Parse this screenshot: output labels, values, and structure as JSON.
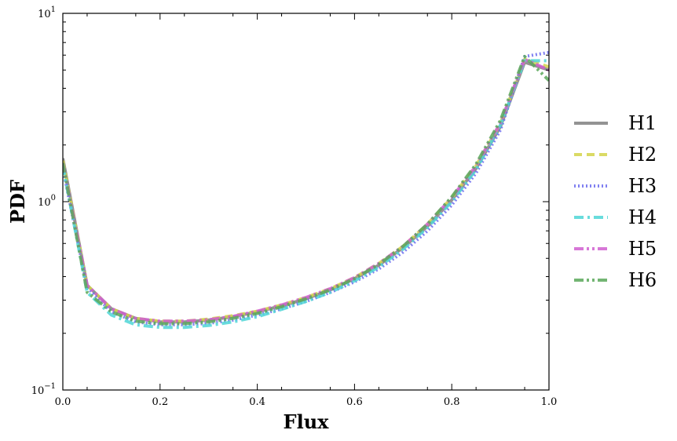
{
  "chart_data": {
    "type": "line",
    "xlabel": "Flux",
    "ylabel": "PDF",
    "xlim": [
      0.0,
      1.0
    ],
    "ylim": [
      0.1,
      10
    ],
    "yscale": "log",
    "grid": false,
    "legend_position": "right outside",
    "x_ticks": [
      "0.0",
      "0.2",
      "0.4",
      "0.6",
      "0.8",
      "1.0"
    ],
    "y_ticks": [
      {
        "base": "10",
        "exp": "−1",
        "value": 0.1
      },
      {
        "base": "10",
        "exp": "0",
        "value": 1
      },
      {
        "base": "10",
        "exp": "1",
        "value": 10
      }
    ],
    "x": [
      0.0,
      0.05,
      0.1,
      0.15,
      0.2,
      0.25,
      0.3,
      0.35,
      0.4,
      0.45,
      0.5,
      0.55,
      0.6,
      0.65,
      0.7,
      0.75,
      0.8,
      0.85,
      0.9,
      0.95,
      1.0
    ],
    "series": [
      {
        "name": "H1",
        "color": "#808080",
        "dash": "solid",
        "values": [
          1.7,
          0.36,
          0.27,
          0.24,
          0.23,
          0.23,
          0.235,
          0.245,
          0.26,
          0.28,
          0.305,
          0.34,
          0.39,
          0.46,
          0.57,
          0.74,
          1.02,
          1.5,
          2.5,
          5.5,
          5.0
        ]
      },
      {
        "name": "H2",
        "color": "#d4d44a",
        "dash": "dashed",
        "values": [
          1.65,
          0.36,
          0.27,
          0.24,
          0.232,
          0.232,
          0.238,
          0.248,
          0.262,
          0.283,
          0.31,
          0.345,
          0.395,
          0.47,
          0.58,
          0.76,
          1.05,
          1.55,
          2.6,
          5.7,
          5.2
        ]
      },
      {
        "name": "H3",
        "color": "#6b6bef",
        "dash": "dotted",
        "values": [
          1.5,
          0.35,
          0.26,
          0.23,
          0.222,
          0.222,
          0.226,
          0.235,
          0.25,
          0.27,
          0.295,
          0.33,
          0.375,
          0.44,
          0.54,
          0.7,
          0.96,
          1.42,
          2.4,
          5.9,
          6.2
        ]
      },
      {
        "name": "H4",
        "color": "#4fd6d6",
        "dash": "dashdot",
        "values": [
          1.55,
          0.33,
          0.25,
          0.222,
          0.215,
          0.215,
          0.22,
          0.23,
          0.245,
          0.268,
          0.295,
          0.33,
          0.38,
          0.45,
          0.56,
          0.73,
          1.0,
          1.48,
          2.55,
          5.6,
          5.6
        ]
      },
      {
        "name": "H5",
        "color": "#d05fd0",
        "dash": "dashdotdot",
        "values": [
          1.6,
          0.36,
          0.27,
          0.24,
          0.232,
          0.232,
          0.236,
          0.246,
          0.262,
          0.283,
          0.31,
          0.345,
          0.395,
          0.47,
          0.58,
          0.76,
          1.05,
          1.55,
          2.62,
          5.7,
          5.0
        ]
      },
      {
        "name": "H6",
        "color": "#5aa85a",
        "dash": "dashdotdot",
        "values": [
          1.6,
          0.33,
          0.26,
          0.232,
          0.225,
          0.225,
          0.23,
          0.24,
          0.255,
          0.277,
          0.305,
          0.34,
          0.39,
          0.465,
          0.58,
          0.76,
          1.06,
          1.58,
          2.7,
          5.9,
          4.4
        ]
      }
    ]
  }
}
